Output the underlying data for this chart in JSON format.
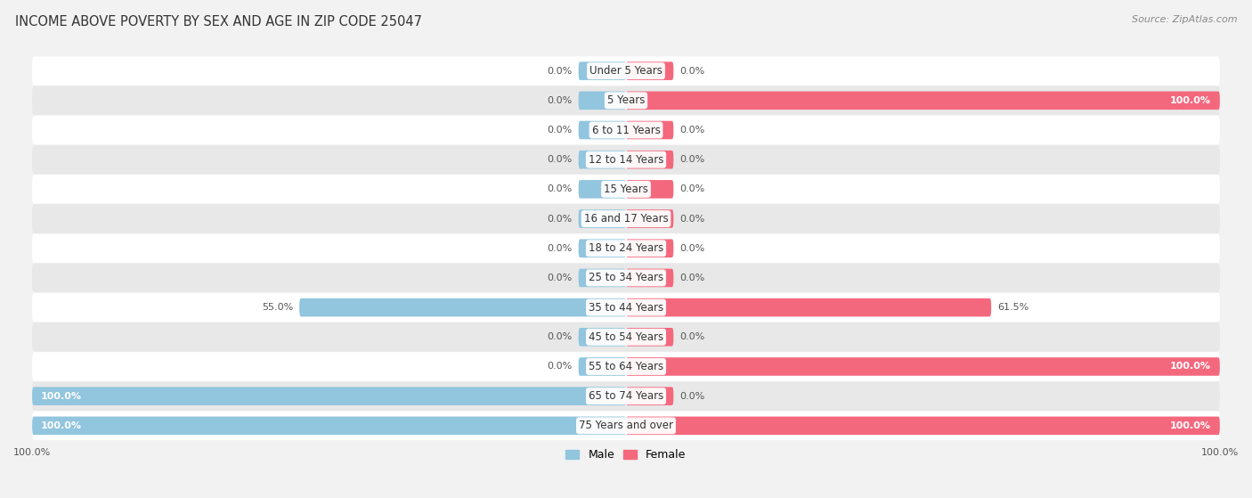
{
  "title": "INCOME ABOVE POVERTY BY SEX AND AGE IN ZIP CODE 25047",
  "source": "Source: ZipAtlas.com",
  "categories": [
    "Under 5 Years",
    "5 Years",
    "6 to 11 Years",
    "12 to 14 Years",
    "15 Years",
    "16 and 17 Years",
    "18 to 24 Years",
    "25 to 34 Years",
    "35 to 44 Years",
    "45 to 54 Years",
    "55 to 64 Years",
    "65 to 74 Years",
    "75 Years and over"
  ],
  "male_values": [
    0.0,
    0.0,
    0.0,
    0.0,
    0.0,
    0.0,
    0.0,
    0.0,
    55.0,
    0.0,
    0.0,
    100.0,
    100.0
  ],
  "female_values": [
    0.0,
    100.0,
    0.0,
    0.0,
    0.0,
    0.0,
    0.0,
    0.0,
    61.5,
    0.0,
    100.0,
    0.0,
    100.0
  ],
  "male_color": "#92c5de",
  "female_color": "#f4687e",
  "male_label": "Male",
  "female_label": "Female",
  "bar_height": 0.62,
  "stub_size": 8.0,
  "xlim": 100,
  "bg_color": "#f2f2f2",
  "row_light": "#ffffff",
  "row_dark": "#e8e8e8",
  "title_fontsize": 10.5,
  "label_fontsize": 8.5,
  "value_fontsize": 8.0,
  "source_fontsize": 8.0,
  "tick_fontsize": 8.0
}
